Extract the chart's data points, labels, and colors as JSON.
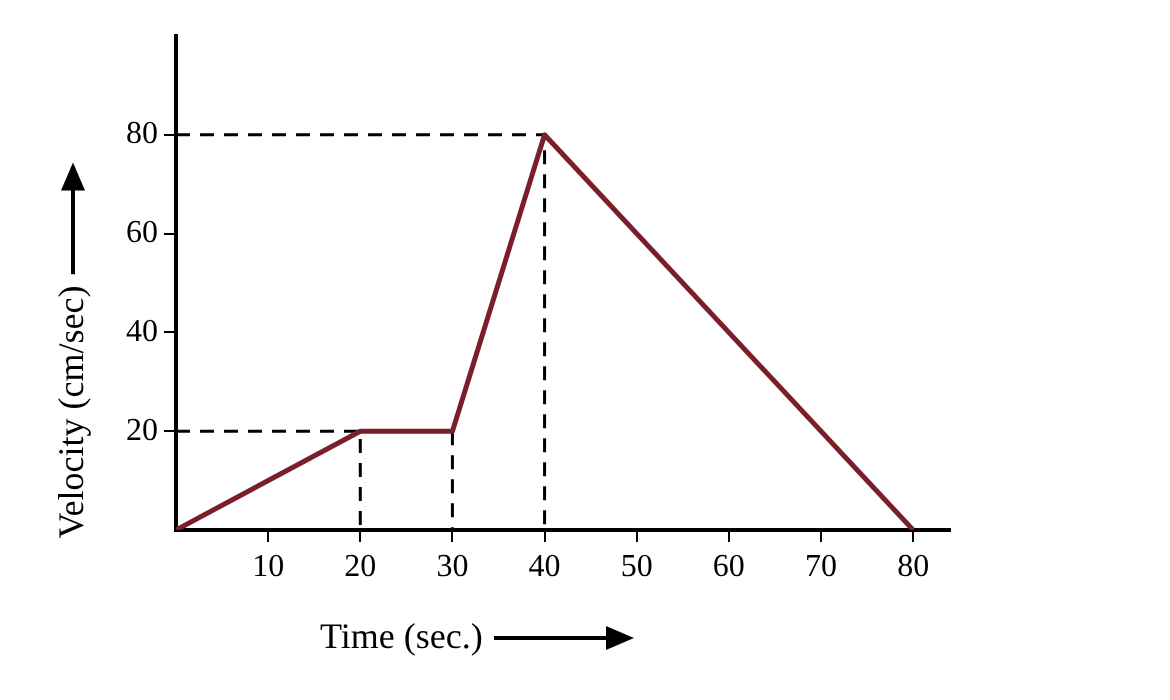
{
  "chart_data": {
    "type": "line",
    "xlabel": "Time (sec.)",
    "ylabel": "Velocity (cm/sec)",
    "xlim": [
      0,
      84
    ],
    "ylim": [
      0,
      100
    ],
    "xticks": [
      10,
      20,
      30,
      40,
      50,
      60,
      70,
      80
    ],
    "yticks": [
      20,
      40,
      60,
      80
    ],
    "grid": false,
    "legend": false,
    "marker": "none",
    "series": [
      {
        "color": "#7a1f2a",
        "x": [
          0,
          20,
          30,
          40,
          80
        ],
        "values": [
          0,
          20,
          20,
          80,
          0
        ],
        "line_style": "solid"
      },
      {
        "color": "#000000",
        "x": [
          0,
          40,
          40
        ],
        "values": [
          80,
          80,
          0
        ],
        "line_style": "dashed"
      },
      {
        "color": "#000000",
        "x": [
          0,
          20,
          20
        ],
        "values": [
          20,
          20,
          0
        ],
        "line_style": "dashed"
      },
      {
        "color": "#000000",
        "x": [
          30,
          30
        ],
        "values": [
          20,
          0
        ],
        "line_style": "dashed"
      }
    ]
  }
}
